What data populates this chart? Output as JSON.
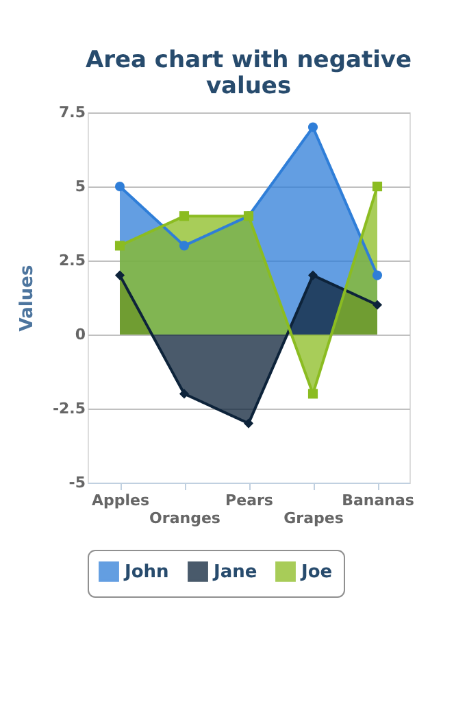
{
  "chart_data": {
    "type": "area",
    "title": "Area chart with negative values",
    "ylabel": "Values",
    "categories": [
      "Apples",
      "Oranges",
      "Pears",
      "Grapes",
      "Bananas"
    ],
    "series": [
      {
        "name": "John",
        "color": "#2f7ed8",
        "values": [
          5,
          3,
          4,
          7,
          2
        ],
        "marker": "circle"
      },
      {
        "name": "Jane",
        "color": "#0d233a",
        "values": [
          2,
          -2,
          -3,
          2,
          1
        ],
        "marker": "diamond"
      },
      {
        "name": "Joe",
        "color": "#8bbc21",
        "values": [
          3,
          4,
          4,
          -2,
          5
        ],
        "marker": "square"
      }
    ],
    "ylim": [
      -5,
      7.5
    ],
    "yticks": [
      -5,
      -2.5,
      0,
      2.5,
      5,
      7.5
    ],
    "grid": "y",
    "legend": "bottom"
  }
}
